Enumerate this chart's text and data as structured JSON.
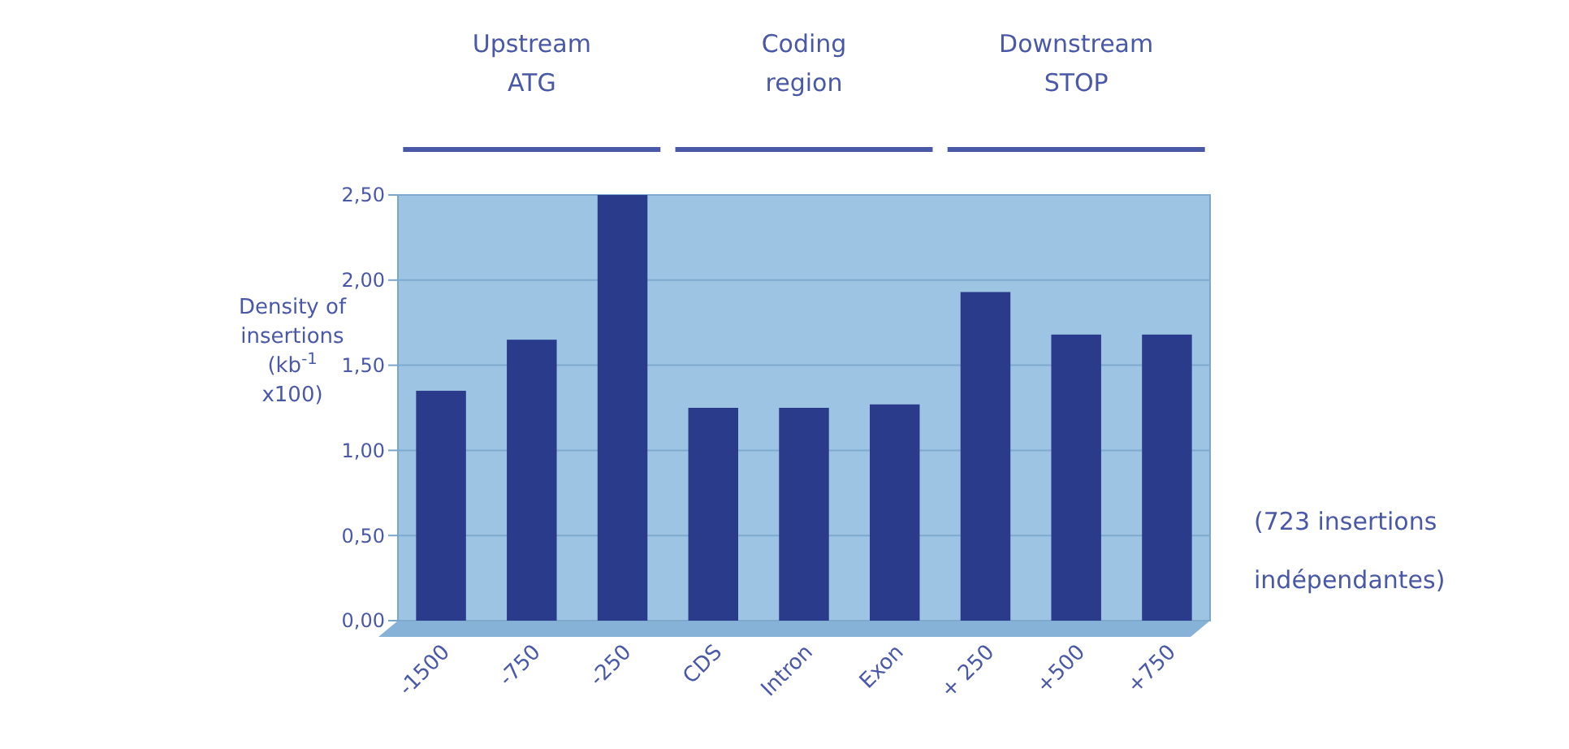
{
  "chart_data": {
    "type": "bar",
    "ylabel": "Density of insertions (kb$^{-1}$ x100)",
    "categories": [
      "-1500",
      "-750",
      "-250",
      "CDS",
      "Intron",
      "Exon",
      "+ 250",
      "+500",
      "+750"
    ],
    "values": [
      1.35,
      1.65,
      2.5,
      1.25,
      1.25,
      1.27,
      1.93,
      1.68,
      1.68
    ],
    "color": "#2b3b8c",
    "ylim": [
      0,
      2.5
    ],
    "yticks": [
      {
        "value": 0,
        "label": "0,00"
      },
      {
        "value": 0.5,
        "label": "0,50"
      },
      {
        "value": 1,
        "label": "1,00"
      },
      {
        "value": 1.5,
        "label": "1,50"
      },
      {
        "value": 2,
        "label": "2,00"
      },
      {
        "value": 2.5,
        "label": "2,50"
      }
    ],
    "grid": "y",
    "annotations": [
      "Upstream ATG",
      "Coding region",
      "Downstream STOP",
      "(723 insertions indépendantes)"
    ]
  }
}
